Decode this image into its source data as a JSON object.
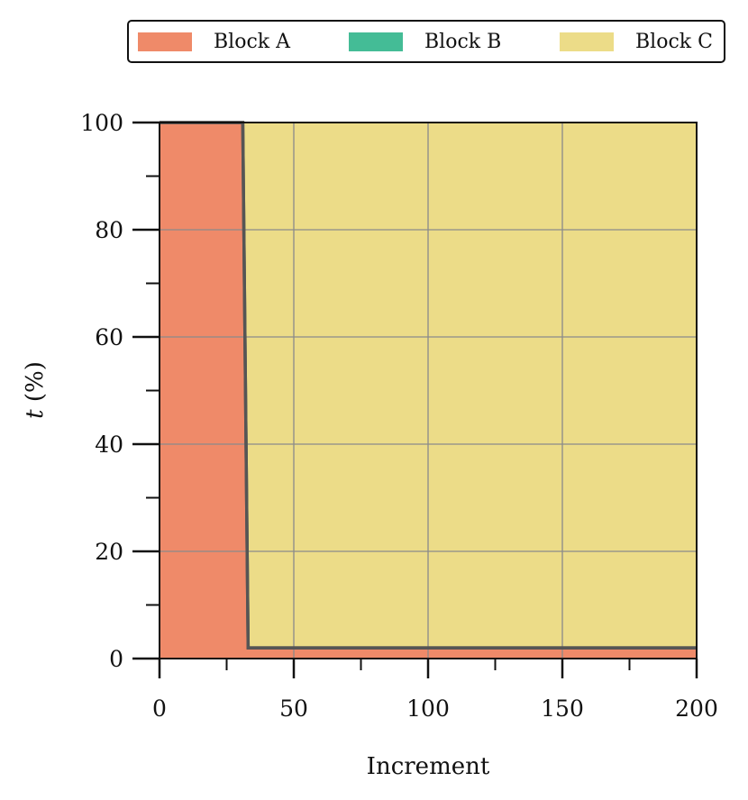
{
  "chart_data": {
    "type": "area",
    "title": "",
    "xlabel": "Increment",
    "ylabel_var": "t",
    "ylabel_unit": " (%)",
    "xlim": [
      0,
      200
    ],
    "ylim": [
      0,
      100
    ],
    "xticks": [
      0,
      50,
      100,
      150,
      200
    ],
    "yticks": [
      0,
      20,
      40,
      60,
      80,
      100
    ],
    "xticks_minor": [
      25,
      75,
      125,
      175
    ],
    "yticks_minor": [
      10,
      30,
      50,
      70,
      90
    ],
    "grid": true,
    "legend_position": "top",
    "stacked": true,
    "x": [
      0,
      31,
      33,
      200
    ],
    "series": [
      {
        "name": "Block A",
        "color": "#EF8A69",
        "values": [
          100,
          100,
          2,
          2
        ]
      },
      {
        "name": "Block B",
        "color": "#44BC96",
        "values": [
          0,
          0,
          0,
          0
        ]
      },
      {
        "name": "Block C",
        "color": "#ECDC88",
        "values": [
          0,
          0,
          98,
          98
        ]
      }
    ]
  }
}
